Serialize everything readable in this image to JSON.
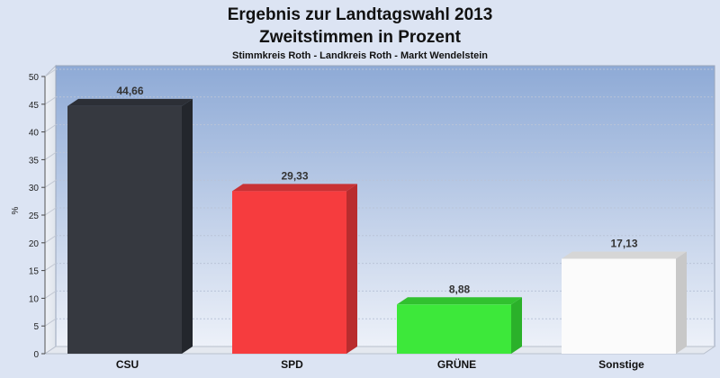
{
  "chart_data": {
    "type": "bar",
    "title": "Ergebnis zur Landtagswahl 2013",
    "title2": "Zweitstimmen in Prozent",
    "subtitle": "Stimmkreis Roth - Landkreis Roth - Markt Wendelstein",
    "ylabel": "%",
    "ylim": [
      0,
      50
    ],
    "yticks": [
      0,
      5,
      10,
      15,
      20,
      25,
      30,
      35,
      40,
      45,
      50
    ],
    "grid": true,
    "categories": [
      "CSU",
      "SPD",
      "GRÜNE",
      "Sonstige"
    ],
    "values": [
      44.66,
      29.33,
      8.88,
      17.13
    ],
    "value_labels": [
      "44,66",
      "29,33",
      "8,88",
      "17,13"
    ],
    "colors": [
      "#363940",
      "#f63c3e",
      "#3de83a",
      "#fbfbfb"
    ],
    "side_colors": [
      "#23262c",
      "#b92c2e",
      "#2bb12a",
      "#c8c8c8"
    ],
    "top_colors": [
      "#2c2f36",
      "#c93234",
      "#31c12f",
      "#d6d6d6"
    ]
  }
}
